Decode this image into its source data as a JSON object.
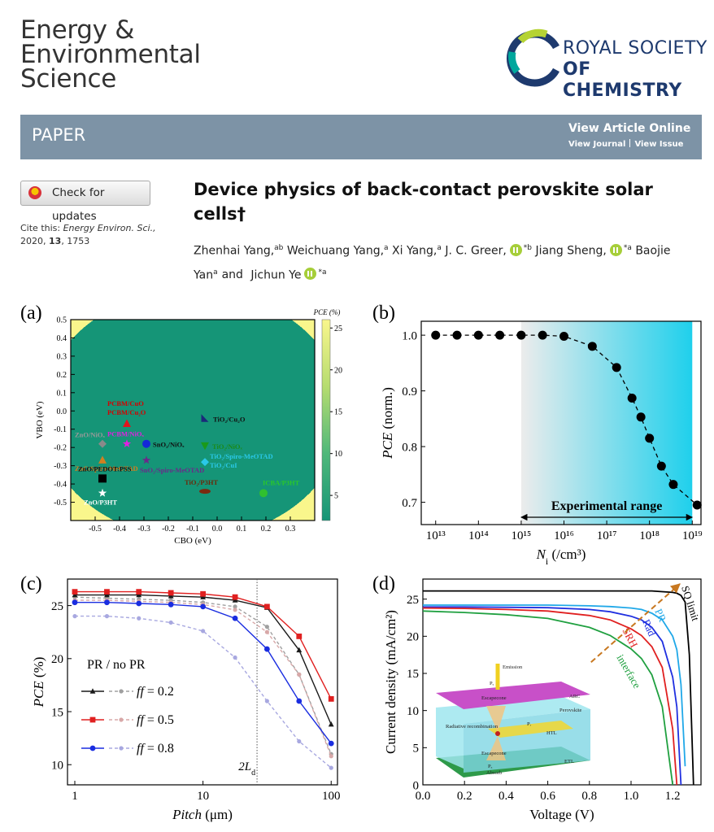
{
  "header": {
    "journal": [
      "Energy &",
      "Environmental",
      "Science"
    ],
    "publisher": [
      "ROYAL SOCIETY",
      "OF CHEMISTRY"
    ]
  },
  "banner": {
    "label": "PAPER",
    "view_article": "View Article Online",
    "view_journal": "View Journal",
    "view_issue": "View Issue"
  },
  "check_updates": "Check for updates",
  "cite": {
    "label": "Cite this:",
    "journal": "Energy Environ. Sci.,",
    "year": "2020,",
    "volume": "13",
    "pages": ", 1753"
  },
  "title": "Device physics of back-contact perovskite solar cells†",
  "authors": [
    {
      "name": "Zhenhai Yang",
      "comma": ",",
      "aff": "ab"
    },
    {
      "name": "Weichuang Yang",
      "comma": ",",
      "aff": "a"
    },
    {
      "name": "Xi Yang",
      "comma": ",",
      "aff": "a"
    },
    {
      "name": "J. C. Greer",
      "comma": ",",
      "orcid": true,
      "aff": "*b"
    },
    {
      "name": "Jiang Sheng",
      "comma": ",",
      "orcid": true,
      "aff": "*a"
    },
    {
      "name": "Baojie Yan",
      "aff": "a",
      "conj": "and"
    },
    {
      "name": "Jichun Ye",
      "orcid": true,
      "aff": "*a"
    }
  ],
  "figures": [
    {
      "panel": "(a)",
      "type": "heatmap-scatter",
      "xlabel": "CBO (eV)",
      "ylabel": "VBO (eV)",
      "xlim": [
        -0.6,
        0.4
      ],
      "ylim": [
        -0.6,
        0.5
      ],
      "xticks": [
        -0.5,
        -0.4,
        -0.3,
        -0.2,
        -0.1,
        {
          "value": 0,
          "label": "0.0"
        },
        0.1,
        0.2,
        0.3
      ],
      "yticks": [
        0.5,
        0.4,
        0.3,
        0.2,
        0.1,
        {
          "value": 0,
          "label": "0.0"
        },
        -0.1,
        -0.2,
        -0.3,
        -0.4,
        -0.5
      ],
      "colorbar": {
        "title": "PCE (%)",
        "lim": [
          2,
          26
        ],
        "ticks": [
          5,
          10,
          15,
          20,
          25
        ],
        "colors": [
          "#159577",
          "#4fb87a",
          "#b6dc70",
          "#f9f68c"
        ]
      },
      "points": [
        {
          "labels": [
            "PCBM/CuO",
            "PCBM/Cu₂O"
          ],
          "x": -0.37,
          "y": -0.07,
          "marker": "triangle",
          "color": "#e0141c",
          "label_color": "#d40000"
        },
        {
          "labels": [
            "ZnO/NiOₓ"
          ],
          "x": -0.47,
          "y": -0.18,
          "marker": "diamond",
          "color": "#8a8a8a",
          "label_color": "#999999"
        },
        {
          "labels": [
            "PCBM/NiOₓ"
          ],
          "x": -0.37,
          "y": -0.18,
          "marker": "star",
          "color": "#e020e0",
          "label_color": "#e020e0"
        },
        {
          "labels": [
            "SnO₂/NiOₓ"
          ],
          "x": -0.29,
          "y": -0.18,
          "marker": "circle",
          "color": "#1428d8",
          "label_color": "#111111"
        },
        {
          "labels": [
            "ZnO/Spiro-MeOTAD"
          ],
          "x": -0.47,
          "y": -0.27,
          "marker": "triangle",
          "color": "#d08020",
          "label_color": "#d08020"
        },
        {
          "labels": [
            "SnO₂/Spiro-MeOTAD"
          ],
          "x": -0.29,
          "y": -0.27,
          "marker": "star",
          "color": "#6a2a8a",
          "label_color": "#6a2a8a"
        },
        {
          "labels": [
            "ZnO/PEDOT:PSS"
          ],
          "x": -0.47,
          "y": -0.37,
          "marker": "square",
          "color": "#000000",
          "label_color": "#111111"
        },
        {
          "labels": [
            "ZnO/P3HT"
          ],
          "x": -0.47,
          "y": -0.45,
          "marker": "star",
          "color": "#ffffff",
          "label_color": "#ffffff"
        },
        {
          "labels": [
            "TiO₂/Cu₂O"
          ],
          "x": -0.05,
          "y": -0.04,
          "marker": "rtriangle",
          "color": "#1a2a7a",
          "label_color": "#111111"
        },
        {
          "labels": [
            "TiO₂/NiOₓ"
          ],
          "x": -0.05,
          "y": -0.19,
          "marker": "dtriangle",
          "color": "#1a9a1a",
          "label_color": "#1a8a1a"
        },
        {
          "labels": [
            "TiO₂/Spiro-MeOTAD",
            "TiO₂/CuI"
          ],
          "x": -0.05,
          "y": -0.28,
          "marker": "diamond",
          "color": "#2ac8e8",
          "label_color": "#2ac8e8"
        },
        {
          "labels": [
            "TiO₂/P3HT"
          ],
          "x": -0.05,
          "y": -0.44,
          "marker": "ellipse",
          "color": "#7a2a10",
          "label_color": "#6a2a0a"
        },
        {
          "labels": [
            "ICBA/P3HT"
          ],
          "x": 0.19,
          "y": -0.45,
          "marker": "circle",
          "color": "#30c030",
          "label_color": "#2ac82a"
        }
      ]
    },
    {
      "panel": "(b)",
      "type": "line",
      "xlog": true,
      "xlabel": [
        {
          "text": "N",
          "style": "italic"
        },
        {
          "text": "i",
          "style": "sub"
        },
        {
          "text": " (/cm³)"
        }
      ],
      "ylabel": [
        {
          "text": "PCE",
          "style": "italic"
        },
        {
          "text": " (norm.)"
        }
      ],
      "xlim": [
        4600000000000.0,
        1.6e+19
      ],
      "ylim": [
        0.66,
        1.025
      ],
      "xticks": [
        {
          "value": 10000000000000.0,
          "label": "10¹³"
        },
        {
          "value": 100000000000000.0,
          "label": "10¹⁴"
        },
        {
          "value": 1000000000000000.0,
          "label": "10¹⁵"
        },
        {
          "value": 1e+16,
          "label": "10¹⁶"
        },
        {
          "value": 1e+17,
          "label": "10¹⁷"
        },
        {
          "value": 1e+18,
          "label": "10¹⁸"
        },
        {
          "value": 1e+19,
          "label": "10¹⁹"
        }
      ],
      "yticks": [
        {
          "value": 1,
          "label": "1.0"
        },
        0.9,
        0.8,
        0.7
      ],
      "x": [
        10000000000000.0,
        31600000000000.0,
        100000000000000.0,
        316000000000000.0,
        1000000000000000.0,
        3160000000000000.0,
        1e+16,
        4.6e+16,
        1.7e+17,
        3.9e+17,
        6.3e+17,
        1e+18,
        1.9e+18,
        3.6e+18,
        1.3e+19
      ],
      "values": [
        1,
        1,
        1,
        1,
        1,
        1,
        0.998,
        0.98,
        0.942,
        0.887,
        0.853,
        0.815,
        0.765,
        0.732,
        0.695
      ],
      "color": "#000000",
      "range": {
        "x": [
          1000000000000000.0,
          1e+19
        ],
        "label": "Experimental range",
        "colors": [
          "#ececec",
          "#1fd0ec"
        ]
      }
    },
    {
      "panel": "(c)",
      "type": "line",
      "xlog": true,
      "xlabel": [
        {
          "text": "Pitch",
          "style": "italic"
        },
        {
          "text": " (μm)"
        }
      ],
      "ylabel": [
        {
          "text": "PCE",
          "style": "italic"
        },
        {
          "text": " (%)"
        }
      ],
      "xlim": [
        0.877,
        112
      ],
      "ylim": [
        8.1,
        27.5
      ],
      "xticks": [
        1,
        10,
        100
      ],
      "yticks": [
        10,
        15,
        20,
        25
      ],
      "x": [
        1,
        1.78,
        3.16,
        5.62,
        10,
        17.8,
        31.6,
        56.2,
        100
      ],
      "legend_title": "PR / no PR",
      "groups": [
        {
          "label": [
            {
              "text": "ff",
              "style": "italic"
            },
            {
              "text": " = 0.2"
            }
          ],
          "pr": {
            "color": "#1a1a1a",
            "values": [
              26.0,
              26.0,
              26.0,
              25.9,
              25.8,
              25.5,
              24.8,
              20.8,
              13.8
            ]
          },
          "no_pr": {
            "color": "#a0a0a0",
            "values": [
              25.8,
              25.7,
              25.6,
              25.5,
              25.3,
              24.9,
              23.0,
              18.5,
              11.0
            ]
          }
        },
        {
          "label": [
            {
              "text": "ff",
              "style": "italic"
            },
            {
              "text": " = 0.5"
            }
          ],
          "pr": {
            "color": "#e02020",
            "values": [
              26.3,
              26.3,
              26.3,
              26.2,
              26.1,
              25.8,
              24.9,
              22.1,
              16.2
            ]
          },
          "no_pr": {
            "color": "#d8a8a8",
            "values": [
              25.5,
              25.5,
              25.4,
              25.3,
              25.1,
              24.6,
              22.5,
              18.5,
              10.8
            ]
          }
        },
        {
          "label": [
            {
              "text": "ff",
              "style": "italic"
            },
            {
              "text": " = 0.8"
            }
          ],
          "pr": {
            "color": "#1a2de0",
            "values": [
              25.3,
              25.3,
              25.2,
              25.1,
              24.9,
              23.8,
              20.9,
              16.0,
              12.0
            ]
          },
          "no_pr": {
            "color": "#a8a8e0",
            "values": [
              24.0,
              24.0,
              23.8,
              23.4,
              22.6,
              20.1,
              16.0,
              12.2,
              9.7
            ]
          }
        }
      ],
      "annotation": {
        "text": "2L",
        "sub": "d",
        "x": 26.4
      }
    },
    {
      "panel": "(d)",
      "type": "line",
      "xlabel": "Voltage (V)",
      "ylabel": "Current density (mA/cm²)",
      "xlim": [
        0,
        1.336
      ],
      "ylim": [
        0,
        27.7
      ],
      "xticks": [
        {
          "value": 0,
          "label": "0.0"
        },
        0.2,
        0.4,
        0.6,
        0.8,
        {
          "value": 1,
          "label": "1.0"
        },
        1.2
      ],
      "yticks": [
        0,
        5,
        10,
        15,
        20,
        25
      ],
      "x": [
        0,
        0.2,
        0.4,
        0.6,
        0.8,
        0.9,
        1.0,
        1.05,
        1.1,
        1.15,
        1.2,
        1.22,
        1.24,
        1.26,
        1.28,
        1.3
      ],
      "series": [
        {
          "name": "SQ limit",
          "color": "#000000",
          "values": [
            26.1,
            26.1,
            26.1,
            26.1,
            26.1,
            26.1,
            26.1,
            26.1,
            26.1,
            26.0,
            25.9,
            25.8,
            25.5,
            24.6,
            17.5,
            0
          ]
        },
        {
          "name": "PR",
          "color": "#20a8e8",
          "values": [
            24.2,
            24.2,
            24.2,
            24.2,
            24.1,
            24.0,
            23.8,
            23.6,
            23.1,
            22.2,
            20.0,
            18.2,
            13.5,
            2.5,
            null,
            null
          ]
        },
        {
          "name": "Rad",
          "color": "#2030e0",
          "values": [
            23.95,
            23.95,
            23.9,
            23.85,
            23.6,
            23.3,
            22.7,
            22.2,
            21.2,
            19.3,
            14.5,
            10.5,
            0,
            null,
            null,
            null
          ]
        },
        {
          "name": "SRH",
          "color": "#e02020",
          "values": [
            23.8,
            23.75,
            23.6,
            23.4,
            22.8,
            22.2,
            21.0,
            20.1,
            18.6,
            15.8,
            7.5,
            0,
            null,
            null,
            null,
            null
          ]
        },
        {
          "name": "interface",
          "color": "#20a040",
          "values": [
            23.4,
            23.2,
            22.9,
            22.4,
            21.2,
            20.1,
            18.3,
            17.0,
            14.8,
            10.5,
            0,
            null,
            null,
            null,
            null,
            null
          ]
        }
      ],
      "inset": {
        "labels": [
          "Emission",
          "ARC",
          "Perovskite",
          "Escapecone",
          "Radiative recombination",
          "HTL",
          "ETL",
          "Absorb",
          "Escapecone",
          "Pₑ",
          "Pᵣ",
          "Pₐ"
        ]
      }
    }
  ]
}
